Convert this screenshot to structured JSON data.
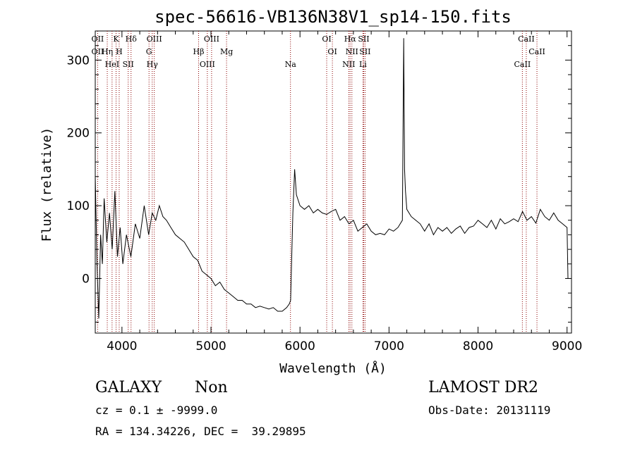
{
  "chart_data": {
    "type": "line",
    "title": "spec-56616-VB136N38V1_sp14-150.fits",
    "xlabel": "Wavelength (Å)",
    "ylabel": "Flux (relative)",
    "xlim": [
      3700,
      9050
    ],
    "ylim": [
      -75,
      340
    ],
    "xticks": [
      "4000",
      "5000",
      "6000",
      "7000",
      "8000",
      "9000"
    ],
    "yticks": [
      "0",
      "100",
      "200",
      "300"
    ],
    "grid": false,
    "line_color": "#000000",
    "marker_color": "#8b0000",
    "series": [
      {
        "x": [
          3700,
          3720,
          3740,
          3760,
          3780,
          3800,
          3830,
          3860,
          3890,
          3920,
          3950,
          3980,
          4010,
          4050,
          4100,
          4150,
          4200,
          4250,
          4300,
          4340,
          4380,
          4420,
          4460,
          4500,
          4550,
          4600,
          4650,
          4700,
          4750,
          4800,
          4850,
          4900,
          4950,
          5000,
          5050,
          5100,
          5150,
          5200,
          5250,
          5300,
          5350,
          5400,
          5450,
          5500,
          5550,
          5600,
          5650,
          5700,
          5750,
          5800,
          5850,
          5880,
          5895,
          5905,
          5920,
          5940,
          5960,
          6000,
          6050,
          6100,
          6150,
          6200,
          6250,
          6300,
          6350,
          6400,
          6450,
          6500,
          6550,
          6600,
          6650,
          6700,
          6750,
          6800,
          6850,
          6900,
          6950,
          7000,
          7050,
          7100,
          7150,
          7165,
          7175,
          7185,
          7200,
          7250,
          7300,
          7350,
          7400,
          7450,
          7500,
          7550,
          7600,
          7650,
          7700,
          7750,
          7800,
          7850,
          7900,
          7950,
          8000,
          8050,
          8100,
          8150,
          8200,
          8250,
          8300,
          8350,
          8400,
          8450,
          8500,
          8550,
          8600,
          8650,
          8700,
          8750,
          8800,
          8850,
          8900,
          8950,
          9000,
          9010
        ],
        "y": [
          140,
          20,
          -55,
          60,
          20,
          110,
          50,
          90,
          40,
          120,
          30,
          70,
          20,
          60,
          30,
          75,
          55,
          100,
          60,
          90,
          80,
          100,
          85,
          80,
          70,
          60,
          55,
          50,
          40,
          30,
          25,
          10,
          5,
          0,
          -10,
          -5,
          -15,
          -20,
          -25,
          -30,
          -30,
          -35,
          -35,
          -40,
          -38,
          -40,
          -42,
          -40,
          -45,
          -45,
          -40,
          -35,
          -30,
          20,
          90,
          150,
          115,
          100,
          95,
          100,
          90,
          95,
          90,
          88,
          92,
          95,
          80,
          85,
          75,
          80,
          65,
          70,
          75,
          65,
          60,
          62,
          60,
          68,
          65,
          70,
          80,
          330,
          150,
          120,
          95,
          85,
          80,
          75,
          65,
          75,
          60,
          70,
          65,
          70,
          62,
          68,
          72,
          62,
          70,
          72,
          80,
          75,
          70,
          80,
          68,
          82,
          75,
          78,
          82,
          78,
          92,
          80,
          85,
          76,
          95,
          85,
          80,
          90,
          80,
          75,
          70,
          0
        ]
      }
    ],
    "lines": [
      {
        "wl": 3727,
        "labels": [
          "OII",
          "OII"
        ]
      },
      {
        "wl": 3835,
        "labels": [
          "Hη"
        ]
      },
      {
        "wl": 3889,
        "labels": [
          "HeI"
        ]
      },
      {
        "wl": 3934,
        "labels": [
          "K"
        ]
      },
      {
        "wl": 3969,
        "labels": [
          "H"
        ]
      },
      {
        "wl": 4070,
        "labels": [
          "SII"
        ]
      },
      {
        "wl": 4102,
        "labels": [
          "Hδ"
        ]
      },
      {
        "wl": 4304,
        "labels": [
          "G"
        ]
      },
      {
        "wl": 4340,
        "labels": [
          "Hγ"
        ]
      },
      {
        "wl": 4363,
        "labels": [
          "OIII"
        ]
      },
      {
        "wl": 4861,
        "labels": [
          "Hβ"
        ]
      },
      {
        "wl": 4959,
        "labels": [
          "OIII"
        ]
      },
      {
        "wl": 5007,
        "labels": [
          "OIII"
        ]
      },
      {
        "wl": 5175,
        "labels": [
          "Mg"
        ]
      },
      {
        "wl": 5893,
        "labels": [
          "Na"
        ]
      },
      {
        "wl": 6300,
        "labels": [
          "OI"
        ]
      },
      {
        "wl": 6364,
        "labels": [
          "OI"
        ]
      },
      {
        "wl": 6548,
        "labels": [
          "NII"
        ]
      },
      {
        "wl": 6563,
        "labels": [
          "Hα"
        ]
      },
      {
        "wl": 6583,
        "labels": [
          "NII"
        ]
      },
      {
        "wl": 6707,
        "labels": [
          "Li"
        ]
      },
      {
        "wl": 6716,
        "labels": [
          "SII"
        ]
      },
      {
        "wl": 6731,
        "labels": [
          "SII"
        ]
      },
      {
        "wl": 8498,
        "labels": [
          "CaII"
        ]
      },
      {
        "wl": 8542,
        "labels": [
          "CaII"
        ]
      },
      {
        "wl": 8662,
        "labels": [
          "CaII"
        ]
      }
    ]
  },
  "info": {
    "class": "GALAXY",
    "subclass": "Non",
    "cz": "cz = 0.1 ± -9999.0",
    "radec": "RA = 134.34226, DEC =  39.29895",
    "survey": "LAMOST DR2",
    "obsdate": "Obs-Date: 20131119"
  }
}
